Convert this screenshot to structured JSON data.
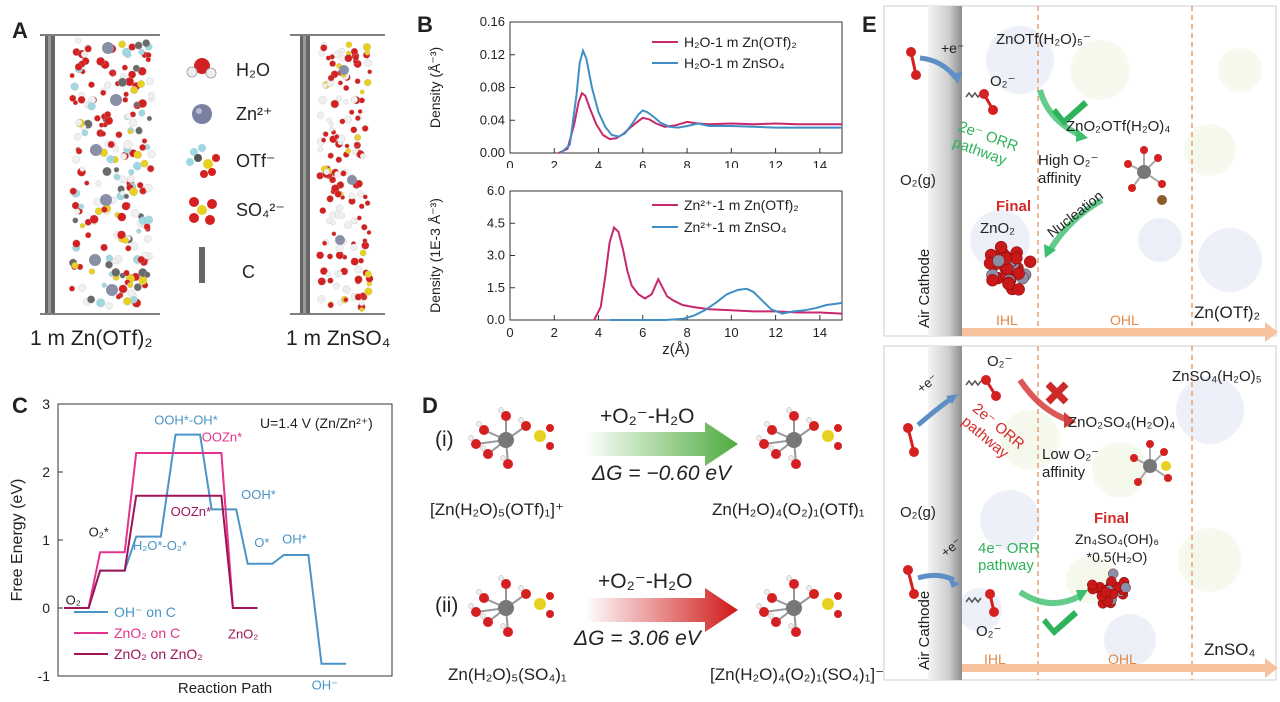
{
  "panels": {
    "A": "A",
    "B": "B",
    "C": "C",
    "D": "D",
    "E": "E"
  },
  "panel_a": {
    "legend": [
      {
        "icon": "water-molecule-icon",
        "label": "H₂O"
      },
      {
        "icon": "zinc-ion-icon",
        "label": "Zn²⁺"
      },
      {
        "icon": "triflate-icon",
        "label": "OTf⁻"
      },
      {
        "icon": "sulfate-icon",
        "label": "SO₄²⁻"
      },
      {
        "icon": "carbon-electrode-icon",
        "label": "C"
      }
    ],
    "left_caption": "1 m Zn(OTf)₂",
    "right_caption": "1 m ZnSO₄",
    "colors": {
      "oxygen": "#d42020",
      "hydrogen": "#f0f0f0",
      "zinc": "#8a8fa8",
      "sulfur": "#e8d020",
      "fluorine": "#9fd8e0",
      "carbon": "#6a6a6a"
    }
  },
  "chart_data": [
    {
      "type": "line",
      "panel": "B-top",
      "xlabel": "",
      "ylabel": "Density (Å⁻³)",
      "xlim": [
        0,
        15
      ],
      "ylim": [
        0,
        0.16
      ],
      "xticks": [
        "0",
        "2",
        "4",
        "6",
        "8",
        "10",
        "12",
        "14"
      ],
      "yticks": [
        "0.00",
        "0.04",
        "0.08",
        "0.12",
        "0.16"
      ],
      "legend": [
        "H₂O-1 m Zn(OTf)₂",
        "H₂O-1 m ZnSO₄"
      ],
      "series": [
        {
          "name": "H₂O-1 m Zn(OTf)₂",
          "color": "#c8286e",
          "x": [
            2.2,
            2.6,
            2.9,
            3.1,
            3.25,
            3.4,
            3.6,
            3.9,
            4.2,
            4.5,
            4.8,
            5.1,
            5.4,
            5.7,
            6.0,
            6.3,
            6.6,
            7.0,
            7.5,
            8.0,
            8.5,
            9.0,
            10.0,
            11.0,
            12.0,
            13.0,
            14.0,
            15.0
          ],
          "y": [
            0.0,
            0.005,
            0.035,
            0.062,
            0.073,
            0.07,
            0.055,
            0.035,
            0.022,
            0.017,
            0.018,
            0.023,
            0.03,
            0.037,
            0.043,
            0.041,
            0.036,
            0.032,
            0.034,
            0.038,
            0.036,
            0.035,
            0.036,
            0.035,
            0.036,
            0.035,
            0.035,
            0.035
          ]
        },
        {
          "name": "H₂O-1 m ZnSO₄",
          "color": "#3f8fc4",
          "x": [
            2.3,
            2.7,
            3.0,
            3.15,
            3.3,
            3.45,
            3.7,
            4.0,
            4.3,
            4.6,
            4.9,
            5.2,
            5.5,
            5.8,
            6.0,
            6.2,
            6.5,
            6.8,
            7.2,
            7.6,
            8.0,
            8.5,
            9.0,
            10.0,
            11.0,
            12.0,
            13.0,
            14.0,
            15.0
          ],
          "y": [
            0.0,
            0.01,
            0.07,
            0.11,
            0.125,
            0.115,
            0.08,
            0.05,
            0.032,
            0.022,
            0.02,
            0.024,
            0.035,
            0.047,
            0.052,
            0.05,
            0.044,
            0.037,
            0.032,
            0.031,
            0.033,
            0.036,
            0.033,
            0.033,
            0.032,
            0.031,
            0.031,
            0.031,
            0.031
          ]
        }
      ]
    },
    {
      "type": "line",
      "panel": "B-bottom",
      "xlabel": "z(Å)",
      "ylabel": "Density (1E-3 Å⁻³)",
      "xlim": [
        0,
        15
      ],
      "ylim": [
        0,
        6.0
      ],
      "xticks": [
        "0",
        "2",
        "4",
        "6",
        "8",
        "10",
        "12",
        "14"
      ],
      "yticks": [
        "0.0",
        "1.5",
        "3.0",
        "4.5",
        "6.0"
      ],
      "legend": [
        "Zn²⁺-1 m Zn(OTf)₂",
        "Zn²⁺-1 m ZnSO₄"
      ],
      "series": [
        {
          "name": "Zn²⁺-1 m Zn(OTf)₂",
          "color": "#c8286e",
          "x": [
            3.8,
            4.1,
            4.3,
            4.5,
            4.7,
            4.9,
            5.1,
            5.3,
            5.5,
            5.8,
            6.1,
            6.4,
            6.7,
            6.9,
            7.1,
            7.4,
            7.8,
            8.3,
            9.0,
            10.0,
            11.0,
            12.0,
            13.0,
            14.0,
            15.0
          ],
          "y": [
            0.0,
            0.6,
            2.0,
            3.6,
            4.3,
            4.1,
            3.3,
            2.3,
            1.6,
            1.2,
            1.0,
            1.2,
            1.9,
            1.5,
            1.1,
            0.9,
            0.7,
            0.6,
            0.5,
            0.45,
            0.4,
            0.4,
            0.35,
            0.35,
            0.3
          ]
        },
        {
          "name": "Zn²⁺-1 m ZnSO₄",
          "color": "#3f8fc4",
          "x": [
            4.5,
            6.0,
            7.0,
            7.8,
            8.3,
            8.8,
            9.3,
            9.8,
            10.3,
            10.7,
            11.0,
            11.4,
            11.8,
            12.3,
            12.8,
            13.3,
            13.8,
            14.3,
            14.7,
            15.0
          ],
          "y": [
            0.0,
            0.0,
            0.0,
            0.05,
            0.2,
            0.45,
            0.8,
            1.2,
            1.4,
            1.45,
            1.3,
            0.9,
            0.5,
            0.3,
            0.4,
            0.45,
            0.55,
            0.7,
            0.75,
            0.8
          ]
        }
      ]
    },
    {
      "type": "line",
      "panel": "C",
      "title": "U=1.4 V (Zn/Zn²⁺)",
      "xlabel": "Reaction Path",
      "ylabel": "Free Energy (eV)",
      "ylim": [
        -1,
        3
      ],
      "xlim": [
        0,
        20
      ],
      "yticks": [
        "-1",
        "0",
        "1",
        "2",
        "3"
      ],
      "legend": [
        "OH⁻ on C",
        "ZnO₂ on C",
        "ZnO₂ on ZnO₂"
      ],
      "series": [
        {
          "name": "OH⁻ on C",
          "color": "#4a95c8",
          "x": [
            0,
            1.5,
            2.2,
            3.7,
            4.4,
            5.9,
            6.8,
            8.3,
            9.0,
            10.5,
            11.2,
            12.7,
            13.4,
            14.9,
            15.7,
            17.2
          ],
          "y": [
            0,
            0,
            0.55,
            0.55,
            1.05,
            1.05,
            2.55,
            2.55,
            1.45,
            1.45,
            0.65,
            0.65,
            0.78,
            0.78,
            -0.82,
            -0.82
          ]
        },
        {
          "name": "ZnO₂ on C",
          "color": "#e2348c",
          "x": [
            0,
            1.5,
            2.2,
            3.7,
            4.4,
            9.6,
            10.3,
            11.8
          ],
          "y": [
            0,
            0,
            0.82,
            0.82,
            2.28,
            2.28,
            0,
            0
          ]
        },
        {
          "name": "ZnO₂ on ZnO₂",
          "color": "#a0145a",
          "x": [
            0,
            1.5,
            2.2,
            3.7,
            4.4,
            9.6,
            10.3,
            11.8
          ],
          "y": [
            0,
            0,
            0.55,
            0.55,
            1.65,
            1.65,
            0,
            0
          ]
        }
      ],
      "annotations": [
        {
          "text": "O₂",
          "x": 0.1,
          "y": 0.05
        },
        {
          "text": "O₂*",
          "x": 1.5,
          "y": 1.05
        },
        {
          "text": "H₂O*-O₂*",
          "x": 4.2,
          "y": 0.85
        },
        {
          "text": "OOH*-OH*",
          "x": 5.5,
          "y": 2.7
        },
        {
          "text": "OOZn*",
          "x": 8.4,
          "y": 2.45
        },
        {
          "text": "OOZn*",
          "x": 6.5,
          "y": 1.35
        },
        {
          "text": "OOH*",
          "x": 10.8,
          "y": 1.6
        },
        {
          "text": "O*",
          "x": 11.6,
          "y": 0.9
        },
        {
          "text": "OH*",
          "x": 13.3,
          "y": 0.95
        },
        {
          "text": "ZnO₂",
          "x": 10.0,
          "y": -0.45
        },
        {
          "text": "OH⁻",
          "x": 15.1,
          "y": -1.2
        }
      ]
    }
  ],
  "panel_d": {
    "row1_label": "(i)",
    "row1_reaction": "+O₂⁻-H₂O",
    "row1_dg": "ΔG = −0.60 eV",
    "row1_left": "[Zn(H₂O)₅(OTf)₁]⁺",
    "row1_right": "Zn(H₂O)₄(O₂)₁(OTf)₁",
    "row1_arrow_color": "#5cb85c",
    "row2_label": "(ii)",
    "row2_reaction": "+O₂⁻-H₂O",
    "row2_dg": "ΔG = 3.06 eV",
    "row2_left": "Zn(H₂O)₅(SO₄)₁",
    "row2_right": "[Zn(H₂O)₄(O₂)₁(SO₄)₁]⁻",
    "row2_arrow_color": "#d92020"
  },
  "panel_e": {
    "top": {
      "electron": "+e⁻",
      "species": "ZnOTf(H₂O)₅⁻",
      "superoxide": "O₂⁻",
      "pathway": "2e⁻ ORR pathway",
      "product": "ZnO₂OTf(H₂O)₄",
      "affinity": "High O₂⁻ affinity",
      "gas": "O₂(g)",
      "final": "Final",
      "final_product": "ZnO₂",
      "nucleation": "Nucleation",
      "cathode": "Air Cathode",
      "ihl": "IHL",
      "ohl": "OHL",
      "electrolyte": "Zn(OTf)₂"
    },
    "bottom": {
      "superoxide_top": "O₂⁻",
      "species": "ZnSO₄(H₂O)₅",
      "electron_top": "+e⁻",
      "pathway_2e": "2e⁻ ORR pathway",
      "product": "ZnO₂SO₄(H₂O)₄",
      "affinity": "Low O₂⁻ affinity",
      "gas": "O₂(g)",
      "electron_bottom": "+e⁻",
      "pathway_4e": "4e⁻ ORR pathway",
      "final": "Final",
      "final_product": "Zn₄SO₄(OH)₆ *0.5(H₂O)",
      "superoxide_bottom": "O₂⁻",
      "cathode": "Air Cathode",
      "ihl": "IHL",
      "ohl": "OHL",
      "electrolyte": "ZnSO₄"
    },
    "colors": {
      "green": "#2fb35a",
      "red": "#d42a2a",
      "orange_arrow": "#f5b58a",
      "ihl_text": "#e08a4a"
    }
  }
}
